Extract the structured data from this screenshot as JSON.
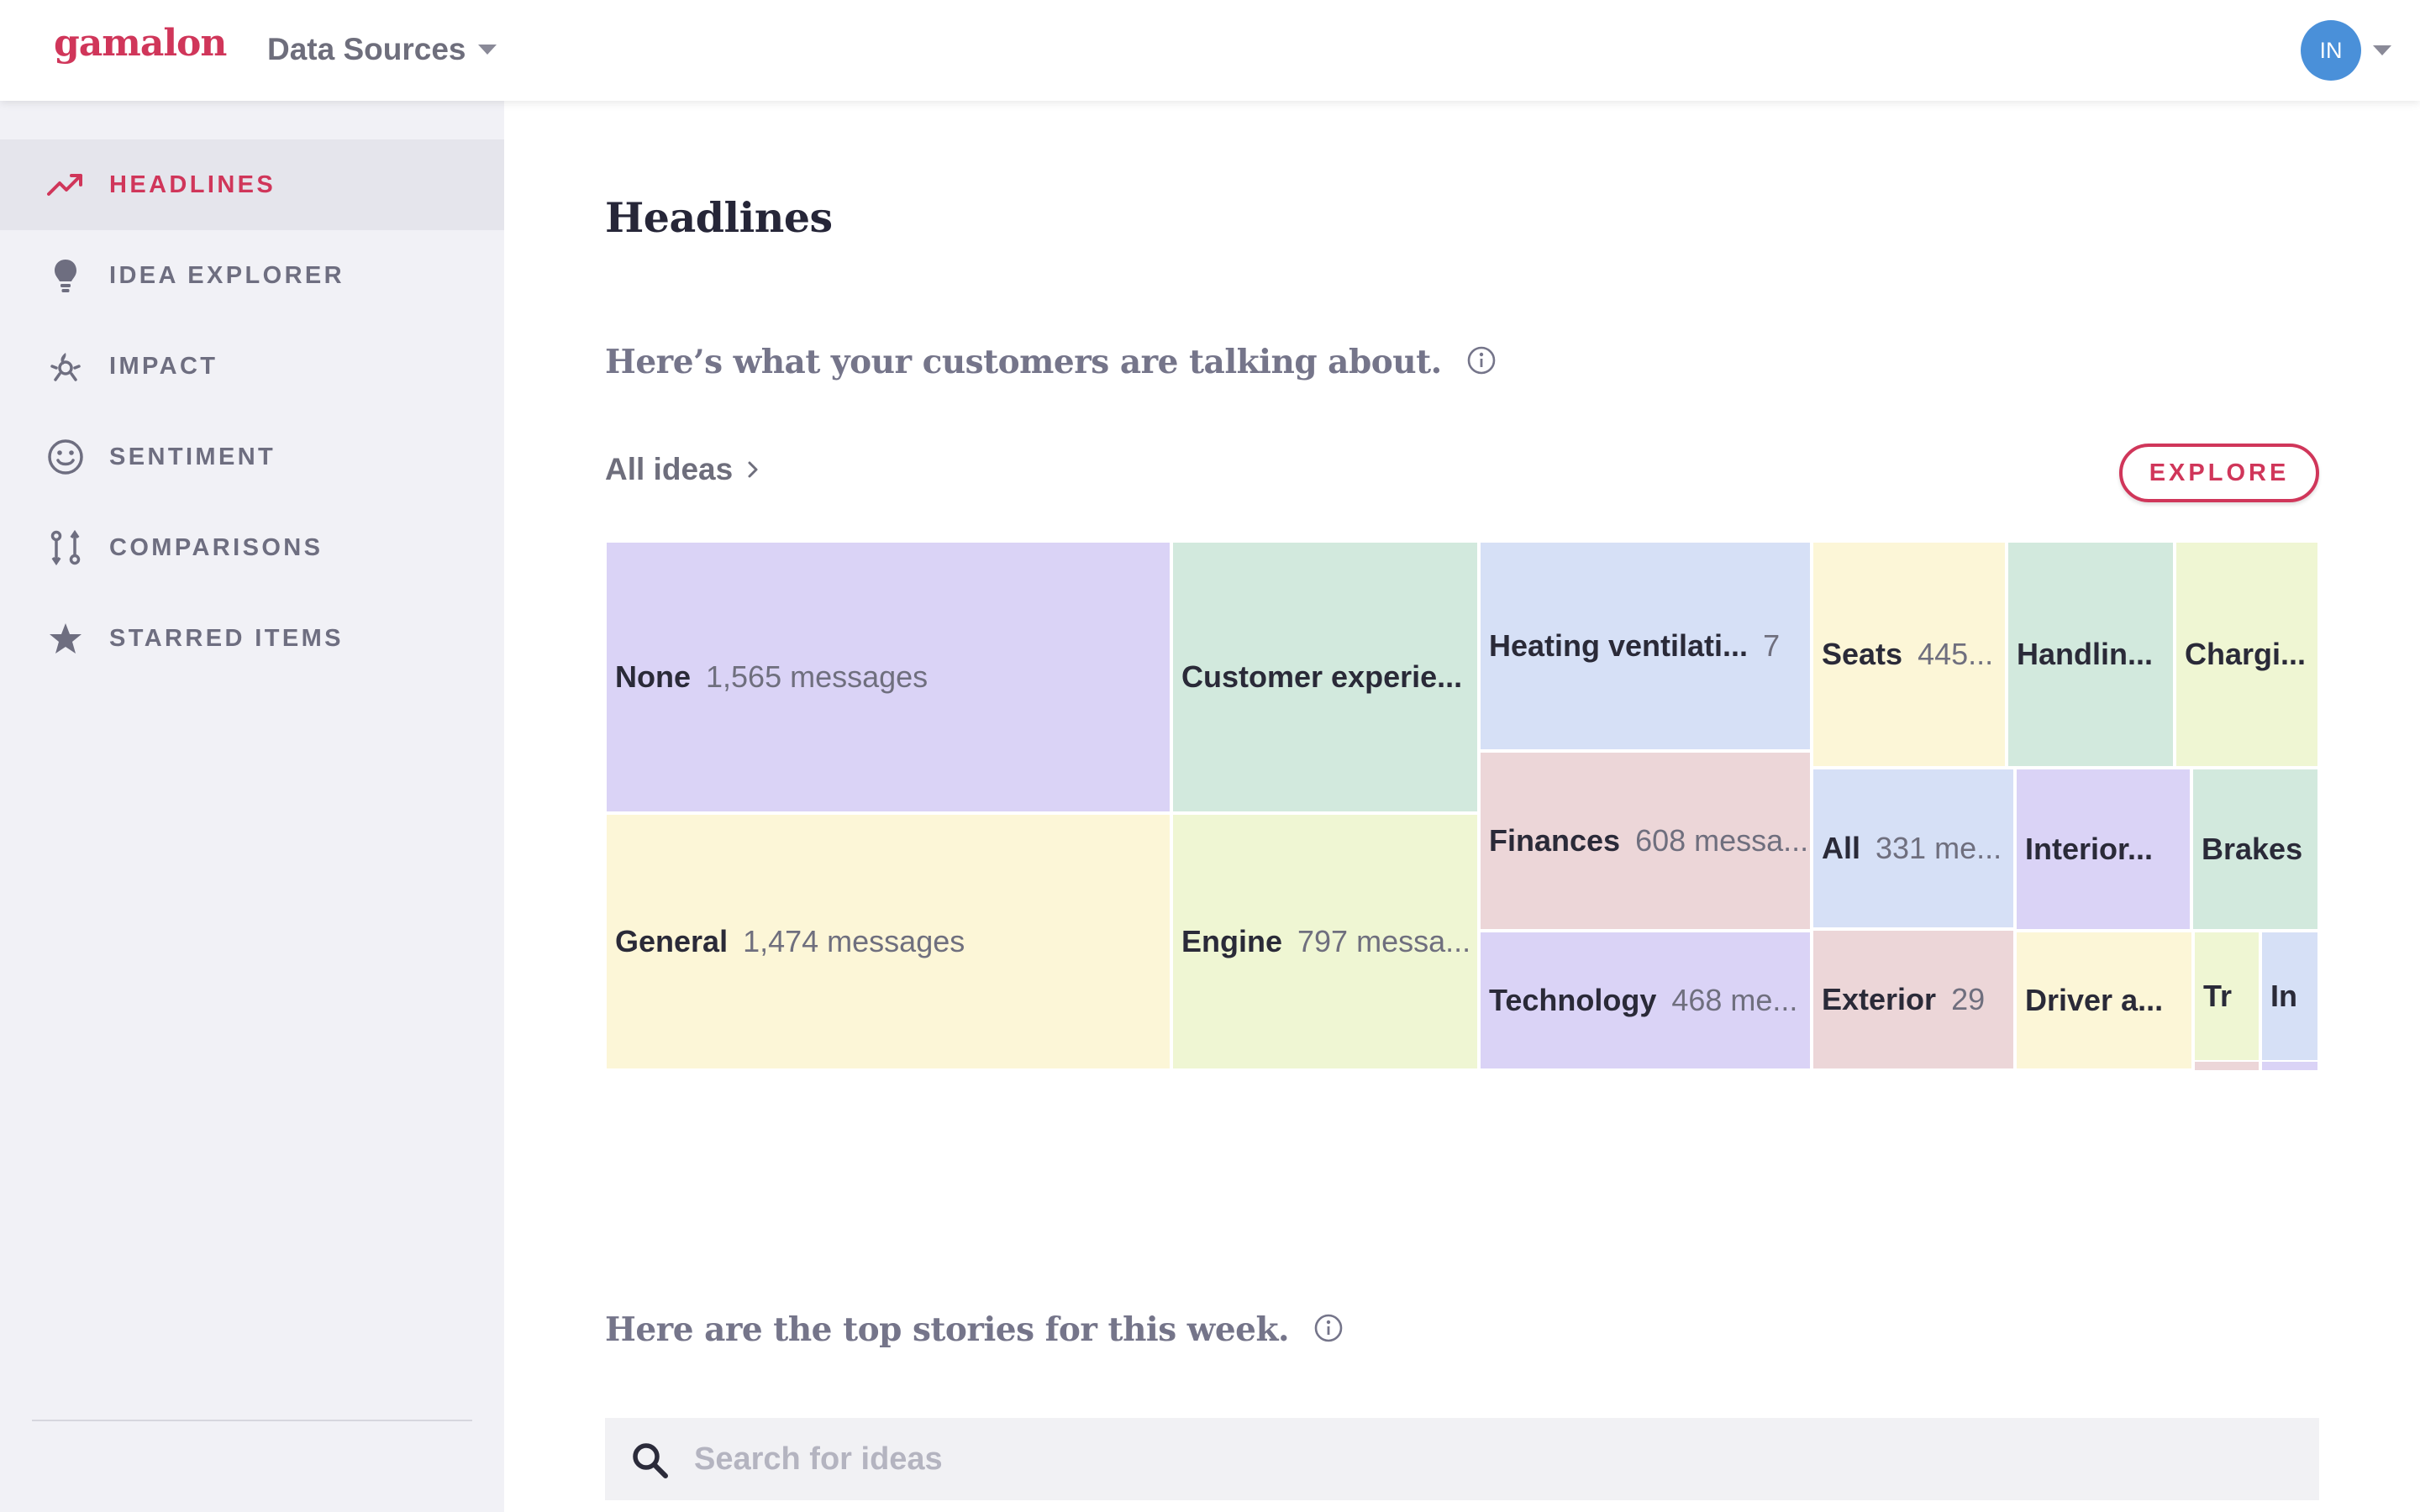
{
  "header": {
    "logo": "gamalon",
    "data_sources_label": "Data Sources",
    "avatar_initials": "IN"
  },
  "sidebar": {
    "items": [
      {
        "label": "HEADLINES",
        "icon": "trending-up-icon",
        "active": true
      },
      {
        "label": "IDEA EXPLORER",
        "icon": "lightbulb-icon",
        "active": false
      },
      {
        "label": "IMPACT",
        "icon": "impact-icon",
        "active": false
      },
      {
        "label": "SENTIMENT",
        "icon": "smiley-icon",
        "active": false
      },
      {
        "label": "COMPARISONS",
        "icon": "compare-icon",
        "active": false
      },
      {
        "label": "STARRED ITEMS",
        "icon": "star-icon",
        "active": false
      }
    ],
    "collapse_icon": "chevron-left-icon"
  },
  "main": {
    "title": "Headlines",
    "section1_title": "Here’s what your customers are talking about.",
    "breadcrumb": "All ideas",
    "explore_label": "EXPLORE",
    "section2_title": "Here are the top stories for this week.",
    "search": {
      "placeholder": "Search for ideas",
      "value": ""
    }
  },
  "treemap": {
    "tiles": [
      {
        "name": "None",
        "count": "1,565 messages",
        "color": "#dad3f6"
      },
      {
        "name": "General",
        "count": "1,474 messages",
        "color": "#fcf6d7"
      },
      {
        "name": "Customer experie...",
        "count": "",
        "color": "#d2e9dd"
      },
      {
        "name": "Engine",
        "count": "797 messa...",
        "color": "#eff6d3"
      },
      {
        "name": "Heating ventilati...",
        "count": "7",
        "color": "#d6e0f6"
      },
      {
        "name": "Finances",
        "count": "608 messa...",
        "color": "#ecd6d8"
      },
      {
        "name": "Technology",
        "count": "468 me...",
        "color": "#dad3f6"
      },
      {
        "name": "Seats",
        "count": "445...",
        "color": "#fcf6d7"
      },
      {
        "name": "Handlin...",
        "count": "",
        "color": "#d2e9dd"
      },
      {
        "name": "Chargi...",
        "count": "",
        "color": "#eff6d3"
      },
      {
        "name": "All",
        "count": "331 me...",
        "color": "#d6e0f6"
      },
      {
        "name": "Interior...",
        "count": "",
        "color": "#dad3f6"
      },
      {
        "name": "Brakes",
        "count": "",
        "color": "#d2e9dd"
      },
      {
        "name": "Exterior",
        "count": "29",
        "color": "#ecd6d8"
      },
      {
        "name": "Driver a...",
        "count": "",
        "color": "#fcf6d7"
      },
      {
        "name": "Tr",
        "count": "",
        "color": "#eff6d3"
      },
      {
        "name": "In",
        "count": "",
        "color": "#d6e0f6"
      },
      {
        "name": "",
        "count": "",
        "color": "#ecd6d8"
      },
      {
        "name": "",
        "count": "",
        "color": "#dad3f6"
      }
    ]
  }
}
